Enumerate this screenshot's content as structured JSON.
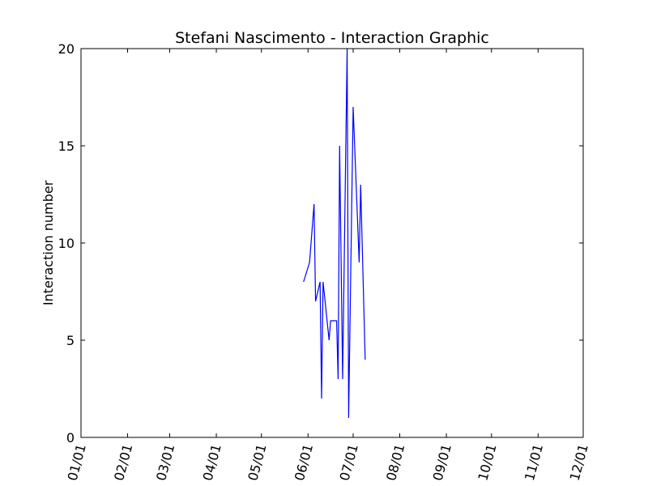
{
  "chart_data": {
    "type": "line",
    "title": "Stefani Nascimento - Interaction Graphic",
    "xlabel": "",
    "ylabel": "Interaction number",
    "xlim": [
      "01/01",
      "12/01"
    ],
    "ylim": [
      0,
      20
    ],
    "x_ticks": [
      "01/01",
      "02/01",
      "03/01",
      "04/01",
      "05/01",
      "06/01",
      "07/01",
      "08/01",
      "09/01",
      "10/01",
      "11/01",
      "12/01"
    ],
    "y_ticks": [
      "0",
      "5",
      "10",
      "15",
      "20"
    ],
    "grid": false,
    "line_color": "#0000ff",
    "series": [
      {
        "x": [
          "05/29",
          "06/02",
          "06/05",
          "06/06",
          "06/09",
          "06/10",
          "06/11",
          "06/15",
          "06/16",
          "06/20",
          "06/21",
          "06/22",
          "06/24",
          "06/27",
          "06/28",
          "07/01",
          "07/05",
          "07/06",
          "07/09",
          "07/12",
          "07/13",
          "07/15",
          "07/17"
        ],
        "values": [
          8,
          9,
          12,
          7,
          8,
          2,
          8,
          5,
          6,
          6,
          3,
          15,
          3,
          20,
          1,
          17,
          9,
          13,
          4,
          null,
          null,
          null,
          null
        ]
      }
    ]
  }
}
